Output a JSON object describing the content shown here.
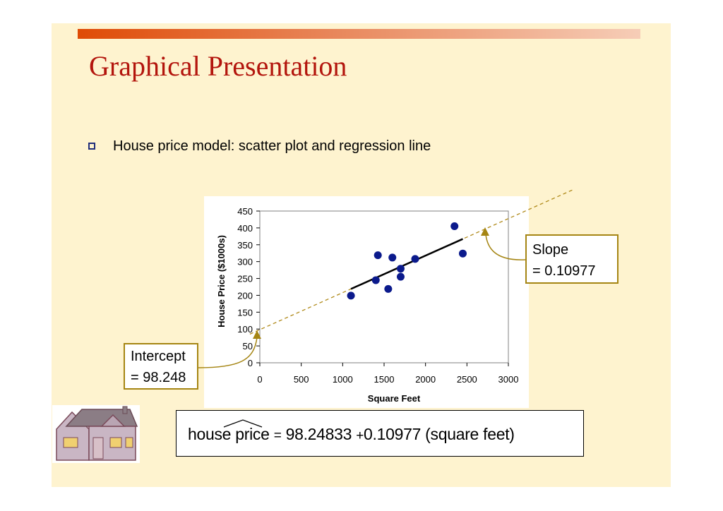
{
  "slide": {
    "title": "Graphical Presentation",
    "bullet": "House price model:  scatter plot and regression line"
  },
  "callouts": {
    "intercept_line1": "Intercept",
    "intercept_line2": "= 98.248",
    "slope_line1": "Slope",
    "slope_line2": "= 0.10977"
  },
  "formula": {
    "lhs": "house price",
    "eq": "=",
    "intercept": "98.24833",
    "plus": "+",
    "slope": "0.10977",
    "term": "(square feet)"
  },
  "colors": {
    "title": "#b3150d",
    "points": "#0b1a8c",
    "dashed_line": "#b08a1a",
    "callout_border": "#a58513",
    "background": "#fef3cf"
  },
  "chart_data": {
    "type": "scatter",
    "xlabel": "Square Feet",
    "ylabel": "House Price ($1000s)",
    "xlim": [
      0,
      3000
    ],
    "ylim": [
      0,
      450
    ],
    "xticks": [
      0,
      500,
      1000,
      1500,
      2000,
      2500,
      3000
    ],
    "yticks": [
      0,
      50,
      100,
      150,
      200,
      250,
      300,
      350,
      400,
      450
    ],
    "grid": false,
    "points": [
      {
        "x": 1100,
        "y": 199
      },
      {
        "x": 1400,
        "y": 245
      },
      {
        "x": 1425,
        "y": 319
      },
      {
        "x": 1550,
        "y": 219
      },
      {
        "x": 1600,
        "y": 312
      },
      {
        "x": 1700,
        "y": 279
      },
      {
        "x": 1700,
        "y": 255
      },
      {
        "x": 1875,
        "y": 308
      },
      {
        "x": 2350,
        "y": 405
      },
      {
        "x": 2450,
        "y": 324
      }
    ],
    "regression": {
      "intercept": 98.24833,
      "slope": 0.10977,
      "x_range": [
        1100,
        2450
      ]
    }
  }
}
